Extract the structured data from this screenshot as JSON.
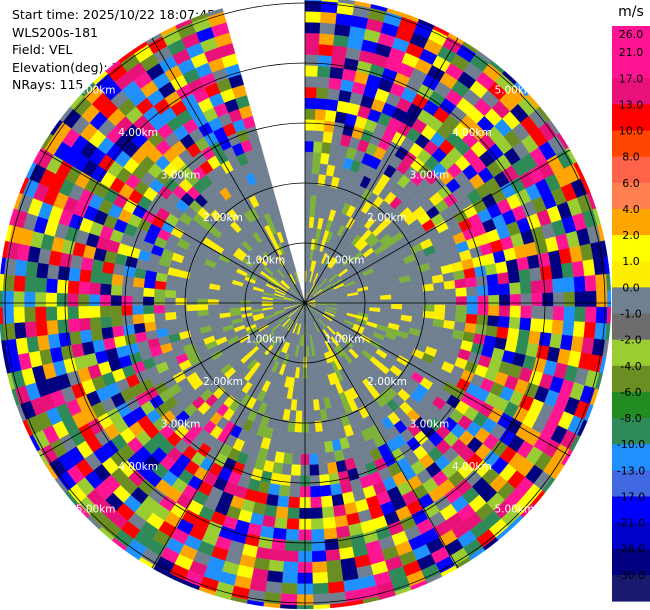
{
  "header": {
    "start_time": "Start time: 2025/10/22 18:07:45",
    "instrument": "WLS200s-181",
    "field": "Field: VEL",
    "elevation": "Elevation(deg): 35.00",
    "nrays": "NRays: 115"
  },
  "chart_data": {
    "type": "heatmap",
    "projection": "polar",
    "range_rings_km": [
      1.0,
      2.0,
      3.0,
      4.0,
      5.0
    ],
    "ring_labels": [
      "1.00km",
      "2.00km",
      "3.00km",
      "4.00km",
      "5.00km"
    ],
    "max_range_km": 5.1,
    "gap_azimuth_deg": [
      345,
      360
    ],
    "inner_core_colors": [
      "#708090",
      "#708090",
      "#708090",
      "#708090",
      "#7fb23a",
      "#ffee00",
      "#708090",
      "#708090"
    ],
    "outer_palette": [
      "#ff1493",
      "#e8117a",
      "#ff0000",
      "#ffff00",
      "#000080",
      "#0000ff",
      "#6b8e23",
      "#9acd32",
      "#2e8b57",
      "#ffa500",
      "#708090",
      "#1e90ff"
    ],
    "colorbar": {
      "unit": "m/s",
      "ticks": [
        "26.0",
        "21.0",
        "17.0",
        "13.0",
        "10.0",
        "8.0",
        "6.0",
        "4.0",
        "2.0",
        "1.0",
        "0.0",
        "-1.0",
        "-2.0",
        "-4.0",
        "-6.0",
        "-8.0",
        "-10.0",
        "-13.0",
        "-17.0",
        "-21.0",
        "-26.0",
        "-30.0"
      ],
      "colors": [
        "#ff1493",
        "#ff1493",
        "#e8117a",
        "#ff0000",
        "#ff4500",
        "#ff6347",
        "#ff7f50",
        "#ffa500",
        "#ffff00",
        "#ffee00",
        "#708090",
        "#6d6d6d",
        "#9acd32",
        "#6b8e23",
        "#228b22",
        "#2e8b57",
        "#1e90ff",
        "#4169e1",
        "#0000ff",
        "#0000cd",
        "#000080",
        "#191970"
      ]
    }
  }
}
